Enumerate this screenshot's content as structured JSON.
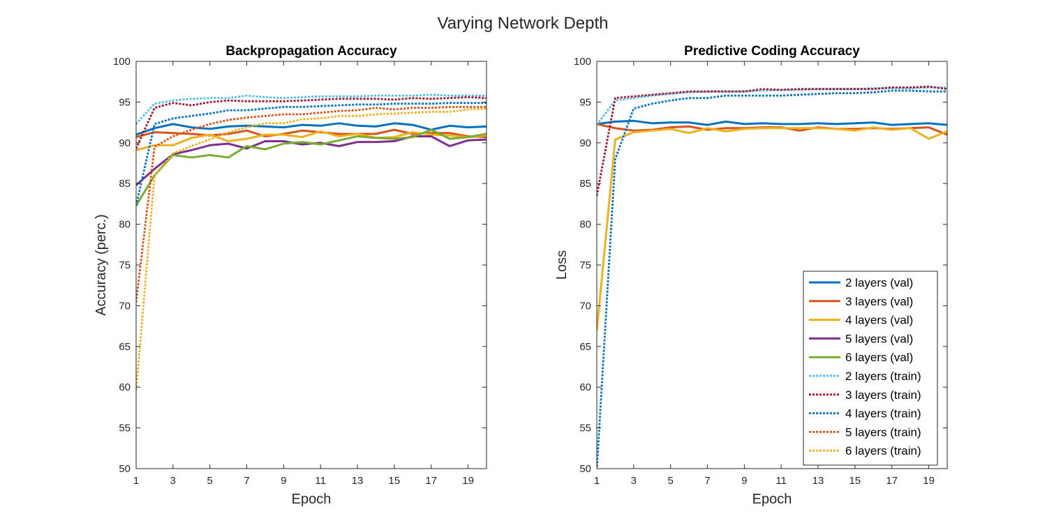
{
  "figure_title": "Varying Network Depth",
  "legend_entries": [
    {
      "name": "2 layers (val)",
      "color": "#0072BD",
      "dashed": false
    },
    {
      "name": "3 layers (val)",
      "color": "#D95319",
      "dashed": false
    },
    {
      "name": "4 layers (val)",
      "color": "#EDB120",
      "dashed": false
    },
    {
      "name": "5 layers (val)",
      "color": "#7E2F8E",
      "dashed": false
    },
    {
      "name": "6 layers (val)",
      "color": "#77AC30",
      "dashed": false
    },
    {
      "name": "2 layers (train)",
      "color": "#4DBEEE",
      "dashed": true
    },
    {
      "name": "3 layers (train)",
      "color": "#A2142F",
      "dashed": true
    },
    {
      "name": "4 layers (train)",
      "color": "#0072BD",
      "dashed": true
    },
    {
      "name": "5 layers (train)",
      "color": "#D95319",
      "dashed": true
    },
    {
      "name": "6 layers (train)",
      "color": "#EDB120",
      "dashed": true
    }
  ],
  "chart_data": [
    {
      "type": "line",
      "title": "Backpropagation Accuracy",
      "xlabel": "Epoch",
      "ylabel": "Accuracy (perc.)",
      "xlim": [
        1,
        20
      ],
      "ylim": [
        50,
        100
      ],
      "xticks": [
        1,
        3,
        5,
        7,
        9,
        11,
        13,
        15,
        17,
        19
      ],
      "yticks": [
        50,
        55,
        60,
        65,
        70,
        75,
        80,
        85,
        90,
        95,
        100
      ],
      "x": [
        1,
        2,
        3,
        4,
        5,
        6,
        7,
        8,
        9,
        10,
        11,
        12,
        13,
        14,
        15,
        16,
        17,
        18,
        19,
        20
      ],
      "legend": false,
      "series": [
        {
          "name": "2 layers (val)",
          "color": "#0072BD",
          "dashed": false,
          "values": [
            91.0,
            91.8,
            92.3,
            91.9,
            91.7,
            92.0,
            92.1,
            92.0,
            91.9,
            92.2,
            92.1,
            92.4,
            92.1,
            92.0,
            92.4,
            92.2,
            91.6,
            92.1,
            91.9,
            92.0
          ]
        },
        {
          "name": "3 layers (val)",
          "color": "#D95319",
          "dashed": false,
          "values": [
            90.7,
            91.3,
            91.2,
            91.1,
            90.9,
            91.1,
            91.5,
            90.8,
            91.1,
            91.5,
            91.3,
            91.1,
            91.1,
            91.1,
            91.6,
            91.1,
            91.2,
            91.2,
            90.8,
            90.7
          ]
        },
        {
          "name": "4 layers (val)",
          "color": "#EDB120",
          "dashed": false,
          "values": [
            89.1,
            89.7,
            89.7,
            90.6,
            91.0,
            90.2,
            90.5,
            91.0,
            91.0,
            90.7,
            91.4,
            90.8,
            91.1,
            90.6,
            90.7,
            91.3,
            91.0,
            90.9,
            90.7,
            90.9
          ]
        },
        {
          "name": "5 layers (val)",
          "color": "#7E2F8E",
          "dashed": false,
          "values": [
            84.8,
            86.8,
            88.6,
            89.1,
            89.7,
            89.9,
            89.3,
            90.2,
            90.2,
            89.8,
            90.0,
            89.6,
            90.1,
            90.1,
            90.2,
            90.8,
            90.8,
            89.6,
            90.3,
            90.4
          ]
        },
        {
          "name": "6 layers (val)",
          "color": "#77AC30",
          "dashed": false,
          "values": [
            82.3,
            86.0,
            88.5,
            88.2,
            88.5,
            88.2,
            89.6,
            89.2,
            89.9,
            90.1,
            89.8,
            90.3,
            90.8,
            90.6,
            90.5,
            90.7,
            91.6,
            90.5,
            90.7,
            91.1
          ]
        },
        {
          "name": "2 layers (train)",
          "color": "#4DBEEE",
          "dashed": true,
          "values": [
            92.3,
            94.8,
            95.2,
            95.4,
            95.5,
            95.5,
            95.8,
            95.6,
            95.5,
            95.6,
            95.7,
            95.7,
            95.7,
            95.8,
            95.8,
            95.8,
            95.9,
            95.8,
            95.8,
            95.8
          ]
        },
        {
          "name": "3 layers (train)",
          "color": "#A2142F",
          "dashed": true,
          "values": [
            89.3,
            94.3,
            94.9,
            94.6,
            95.0,
            95.2,
            95.1,
            95.1,
            95.1,
            95.2,
            95.3,
            95.4,
            95.4,
            95.4,
            95.3,
            95.5,
            95.4,
            95.5,
            95.6,
            95.5
          ]
        },
        {
          "name": "4 layers (train)",
          "color": "#0072BD",
          "dashed": true,
          "values": [
            82.3,
            92.3,
            93.0,
            93.3,
            93.6,
            94.0,
            94.0,
            94.2,
            94.4,
            94.4,
            94.5,
            94.6,
            94.7,
            94.7,
            94.8,
            94.8,
            94.8,
            94.9,
            94.9,
            94.9
          ]
        },
        {
          "name": "5 layers (train)",
          "color": "#D95319",
          "dashed": true,
          "values": [
            70.4,
            89.5,
            90.8,
            91.6,
            92.3,
            92.8,
            93.1,
            93.3,
            93.5,
            93.5,
            93.7,
            93.9,
            94.0,
            94.3,
            94.1,
            94.3,
            94.3,
            94.4,
            94.4,
            94.4
          ]
        },
        {
          "name": "6 layers (train)",
          "color": "#EDB120",
          "dashed": true,
          "values": [
            59.6,
            86.0,
            88.7,
            89.6,
            90.4,
            91.3,
            91.9,
            92.4,
            92.4,
            92.9,
            93.0,
            93.3,
            93.3,
            93.5,
            93.6,
            93.7,
            93.8,
            93.8,
            94.1,
            94.2
          ]
        }
      ]
    },
    {
      "type": "line",
      "title": "Predictive Coding Accuracy",
      "xlabel": "Epoch",
      "ylabel": "Loss",
      "xlim": [
        1,
        20
      ],
      "ylim": [
        50,
        100
      ],
      "xticks": [
        1,
        3,
        5,
        7,
        9,
        11,
        13,
        15,
        17,
        19
      ],
      "yticks": [
        50,
        55,
        60,
        65,
        70,
        75,
        80,
        85,
        90,
        95,
        100
      ],
      "x": [
        1,
        2,
        3,
        4,
        5,
        6,
        7,
        8,
        9,
        10,
        11,
        12,
        13,
        14,
        15,
        16,
        17,
        18,
        19,
        20
      ],
      "legend": true,
      "legend_position": "bottom-right",
      "series": [
        {
          "name": "2 layers (val)",
          "color": "#0072BD",
          "dashed": false,
          "values": [
            92.3,
            92.6,
            92.7,
            92.4,
            92.5,
            92.5,
            92.2,
            92.6,
            92.3,
            92.4,
            92.3,
            92.3,
            92.4,
            92.3,
            92.4,
            92.5,
            92.2,
            92.3,
            92.4,
            92.2
          ]
        },
        {
          "name": "3 layers (val)",
          "color": "#D95319",
          "dashed": false,
          "values": [
            92.3,
            91.8,
            91.5,
            91.6,
            91.9,
            92.0,
            91.6,
            91.8,
            91.8,
            91.9,
            91.9,
            91.5,
            91.9,
            91.7,
            91.7,
            91.8,
            91.7,
            91.8,
            91.9,
            91.0
          ]
        },
        {
          "name": "4 layers (val)",
          "color": "#EDB120",
          "dashed": false,
          "values": [
            66.9,
            90.4,
            91.3,
            91.5,
            91.7,
            91.2,
            91.8,
            91.4,
            91.7,
            91.8,
            91.8,
            91.8,
            91.8,
            91.7,
            91.5,
            91.9,
            91.6,
            91.8,
            90.5,
            91.4
          ]
        },
        {
          "name": "2 layers (train)",
          "color": "#4DBEEE",
          "dashed": true,
          "values": [
            92.2,
            95.2,
            95.5,
            95.8,
            96.0,
            96.2,
            96.3,
            96.3,
            96.3,
            96.4,
            96.5,
            96.5,
            96.6,
            96.6,
            96.6,
            96.7,
            96.7,
            96.7,
            96.8,
            96.8
          ]
        },
        {
          "name": "3 layers (train)",
          "color": "#A2142F",
          "dashed": true,
          "values": [
            83.5,
            95.5,
            95.7,
            95.9,
            96.1,
            96.3,
            96.3,
            96.3,
            96.3,
            96.6,
            96.5,
            96.6,
            96.6,
            96.6,
            96.6,
            96.6,
            96.8,
            96.8,
            96.9,
            96.6
          ]
        },
        {
          "name": "4 layers (train)",
          "color": "#0072BD",
          "dashed": true,
          "values": [
            49.8,
            88.0,
            94.2,
            94.8,
            95.2,
            95.5,
            95.5,
            95.8,
            95.8,
            95.8,
            95.8,
            95.9,
            96.0,
            96.1,
            96.1,
            96.2,
            96.4,
            96.4,
            96.3,
            96.3
          ]
        }
      ]
    }
  ]
}
